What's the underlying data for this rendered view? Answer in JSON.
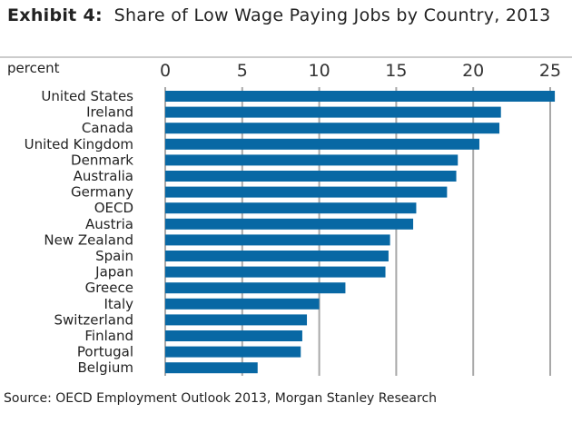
{
  "chart_data": {
    "type": "bar",
    "orientation": "horizontal",
    "title_prefix": "Exhibit 4:",
    "title": "Share of Low Wage Paying Jobs by Country, 2013",
    "ylabel": "percent",
    "xlim": [
      0,
      25
    ],
    "xticks": [
      "0",
      "5",
      "10",
      "15",
      "20",
      "25"
    ],
    "grid": true,
    "categories": [
      "United States",
      "Ireland",
      "Canada",
      "United Kingdom",
      "Denmark",
      "Australia",
      "Germany",
      "OECD",
      "Austria",
      "New Zealand",
      "Spain",
      "Japan",
      "Greece",
      "Italy",
      "Switzerland",
      "Finland",
      "Portugal",
      "Belgium"
    ],
    "values": [
      25.3,
      21.8,
      21.7,
      20.4,
      19.0,
      18.9,
      18.3,
      16.3,
      16.1,
      14.6,
      14.5,
      14.3,
      11.7,
      10.0,
      9.2,
      8.9,
      8.8,
      6.0
    ],
    "bar_color": "#0868a4",
    "source": "Source: OECD Employment Outlook 2013, Morgan Stanley Research"
  }
}
